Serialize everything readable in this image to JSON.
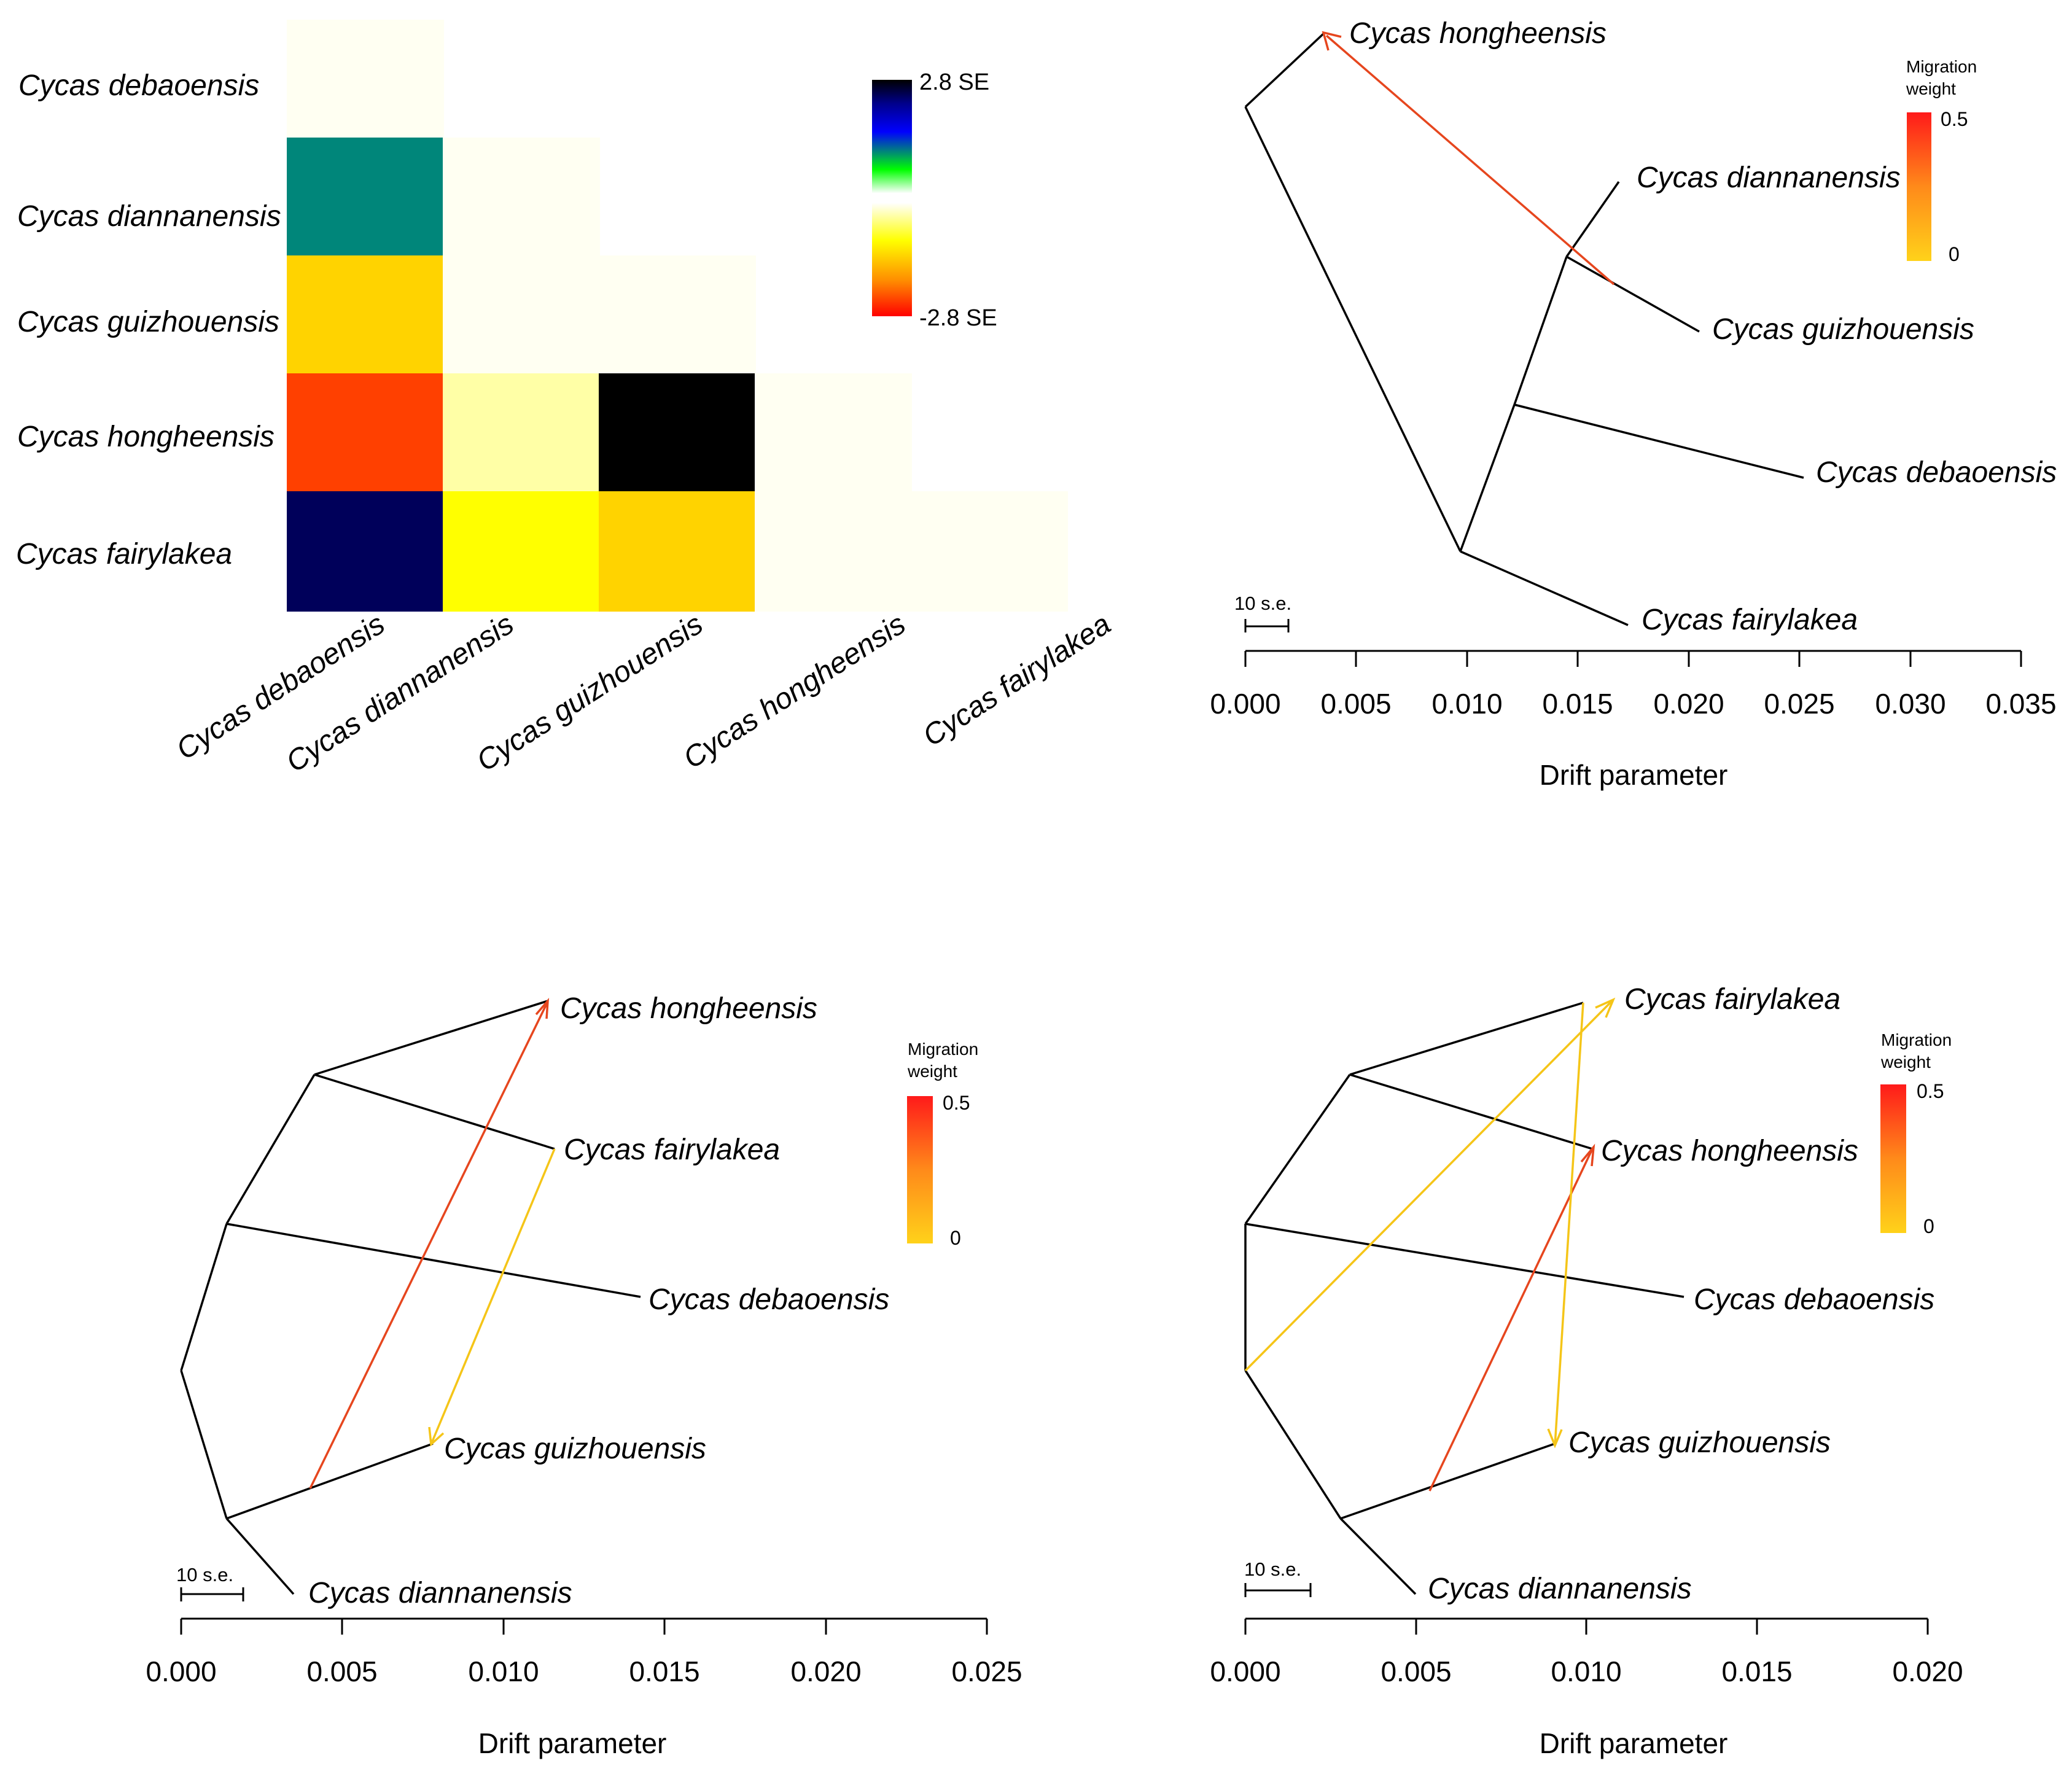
{
  "chart_data": [
    {
      "type": "heatmap",
      "title": "",
      "rows": [
        "Cycas debaoensis",
        "Cycas diannanensis",
        "Cycas guizhouensis",
        "Cycas hongheensis",
        "Cycas fairylakea"
      ],
      "columns": [
        "Cycas debaoensis",
        "Cycas diannanensis",
        "Cycas guizhouensis",
        "Cycas hongheensis",
        "Cycas fairylakea"
      ],
      "values_se": [
        [
          0.0,
          null,
          null,
          null,
          null
        ],
        [
          1.6,
          0.0,
          null,
          null,
          null
        ],
        [
          -1.2,
          0.0,
          0.0,
          null,
          null
        ],
        [
          -2.1,
          -0.35,
          2.8,
          0.0,
          null
        ],
        [
          2.5,
          -0.9,
          -1.1,
          0.0,
          0.0
        ]
      ],
      "colorbar": {
        "max_label": "2.8 SE",
        "min_label": "-2.8 SE",
        "range": [
          -2.8,
          2.8
        ]
      }
    },
    {
      "type": "tree",
      "xlabel": "Drift parameter",
      "xticks": [
        "0.000",
        "0.005",
        "0.010",
        "0.015",
        "0.020",
        "0.025",
        "0.030",
        "0.035"
      ],
      "xlim": [
        0,
        0.035
      ],
      "scale_label": "10 s.e.",
      "legend": {
        "title_line1": "Migration",
        "title_line2": "weight",
        "max": "0.5",
        "min": "0"
      },
      "tips": [
        "Cycas hongheensis",
        "Cycas diannanensis",
        "Cycas guizhouensis",
        "Cycas debaoensis",
        "Cycas fairylakea"
      ],
      "migration_edges": [
        {
          "from_x": 0.0167,
          "from": "Cycas guizhouensis branch",
          "to": "Cycas hongheensis",
          "weight": 0.42
        }
      ]
    },
    {
      "type": "tree",
      "xlabel": "Drift parameter",
      "xticks": [
        "0.000",
        "0.005",
        "0.010",
        "0.015",
        "0.020",
        "0.025"
      ],
      "xlim": [
        0,
        0.025
      ],
      "scale_label": "10 s.e.",
      "legend": {
        "title_line1": "Migration",
        "title_line2": "weight",
        "max": "0.5",
        "min": "0"
      },
      "tips": [
        "Cycas hongheensis",
        "Cycas fairylakea",
        "Cycas debaoensis",
        "Cycas guizhouensis",
        "Cycas diannanensis"
      ],
      "migration_edges": [
        {
          "from": "Cycas guizhouensis branch",
          "to": "Cycas hongheensis",
          "weight": 0.42
        },
        {
          "from": "Cycas fairylakea",
          "to": "Cycas guizhouensis",
          "weight": 0.05
        }
      ]
    },
    {
      "type": "tree",
      "xlabel": "Drift parameter",
      "xticks": [
        "0.000",
        "0.005",
        "0.010",
        "0.015",
        "0.020"
      ],
      "xlim": [
        0,
        0.02
      ],
      "scale_label": "10 s.e.",
      "legend": {
        "title_line1": "Migration",
        "title_line2": "weight",
        "max": "0.5",
        "min": "0"
      },
      "tips": [
        "Cycas fairylakea",
        "Cycas hongheensis",
        "Cycas debaoensis",
        "Cycas guizhouensis",
        "Cycas diannanensis"
      ],
      "migration_edges": [
        {
          "from": "root",
          "to": "Cycas fairylakea",
          "weight": 0.1
        },
        {
          "from": "Cycas guizhouensis branch",
          "to": "Cycas hongheensis",
          "weight": 0.42
        },
        {
          "from": "Cycas fairylakea",
          "to": "Cycas guizhouensis",
          "weight": 0.05
        }
      ]
    }
  ],
  "colors": {
    "tree_line": "#000000",
    "migration_high": "#e6461e",
    "migration_low": "#f5c518"
  }
}
